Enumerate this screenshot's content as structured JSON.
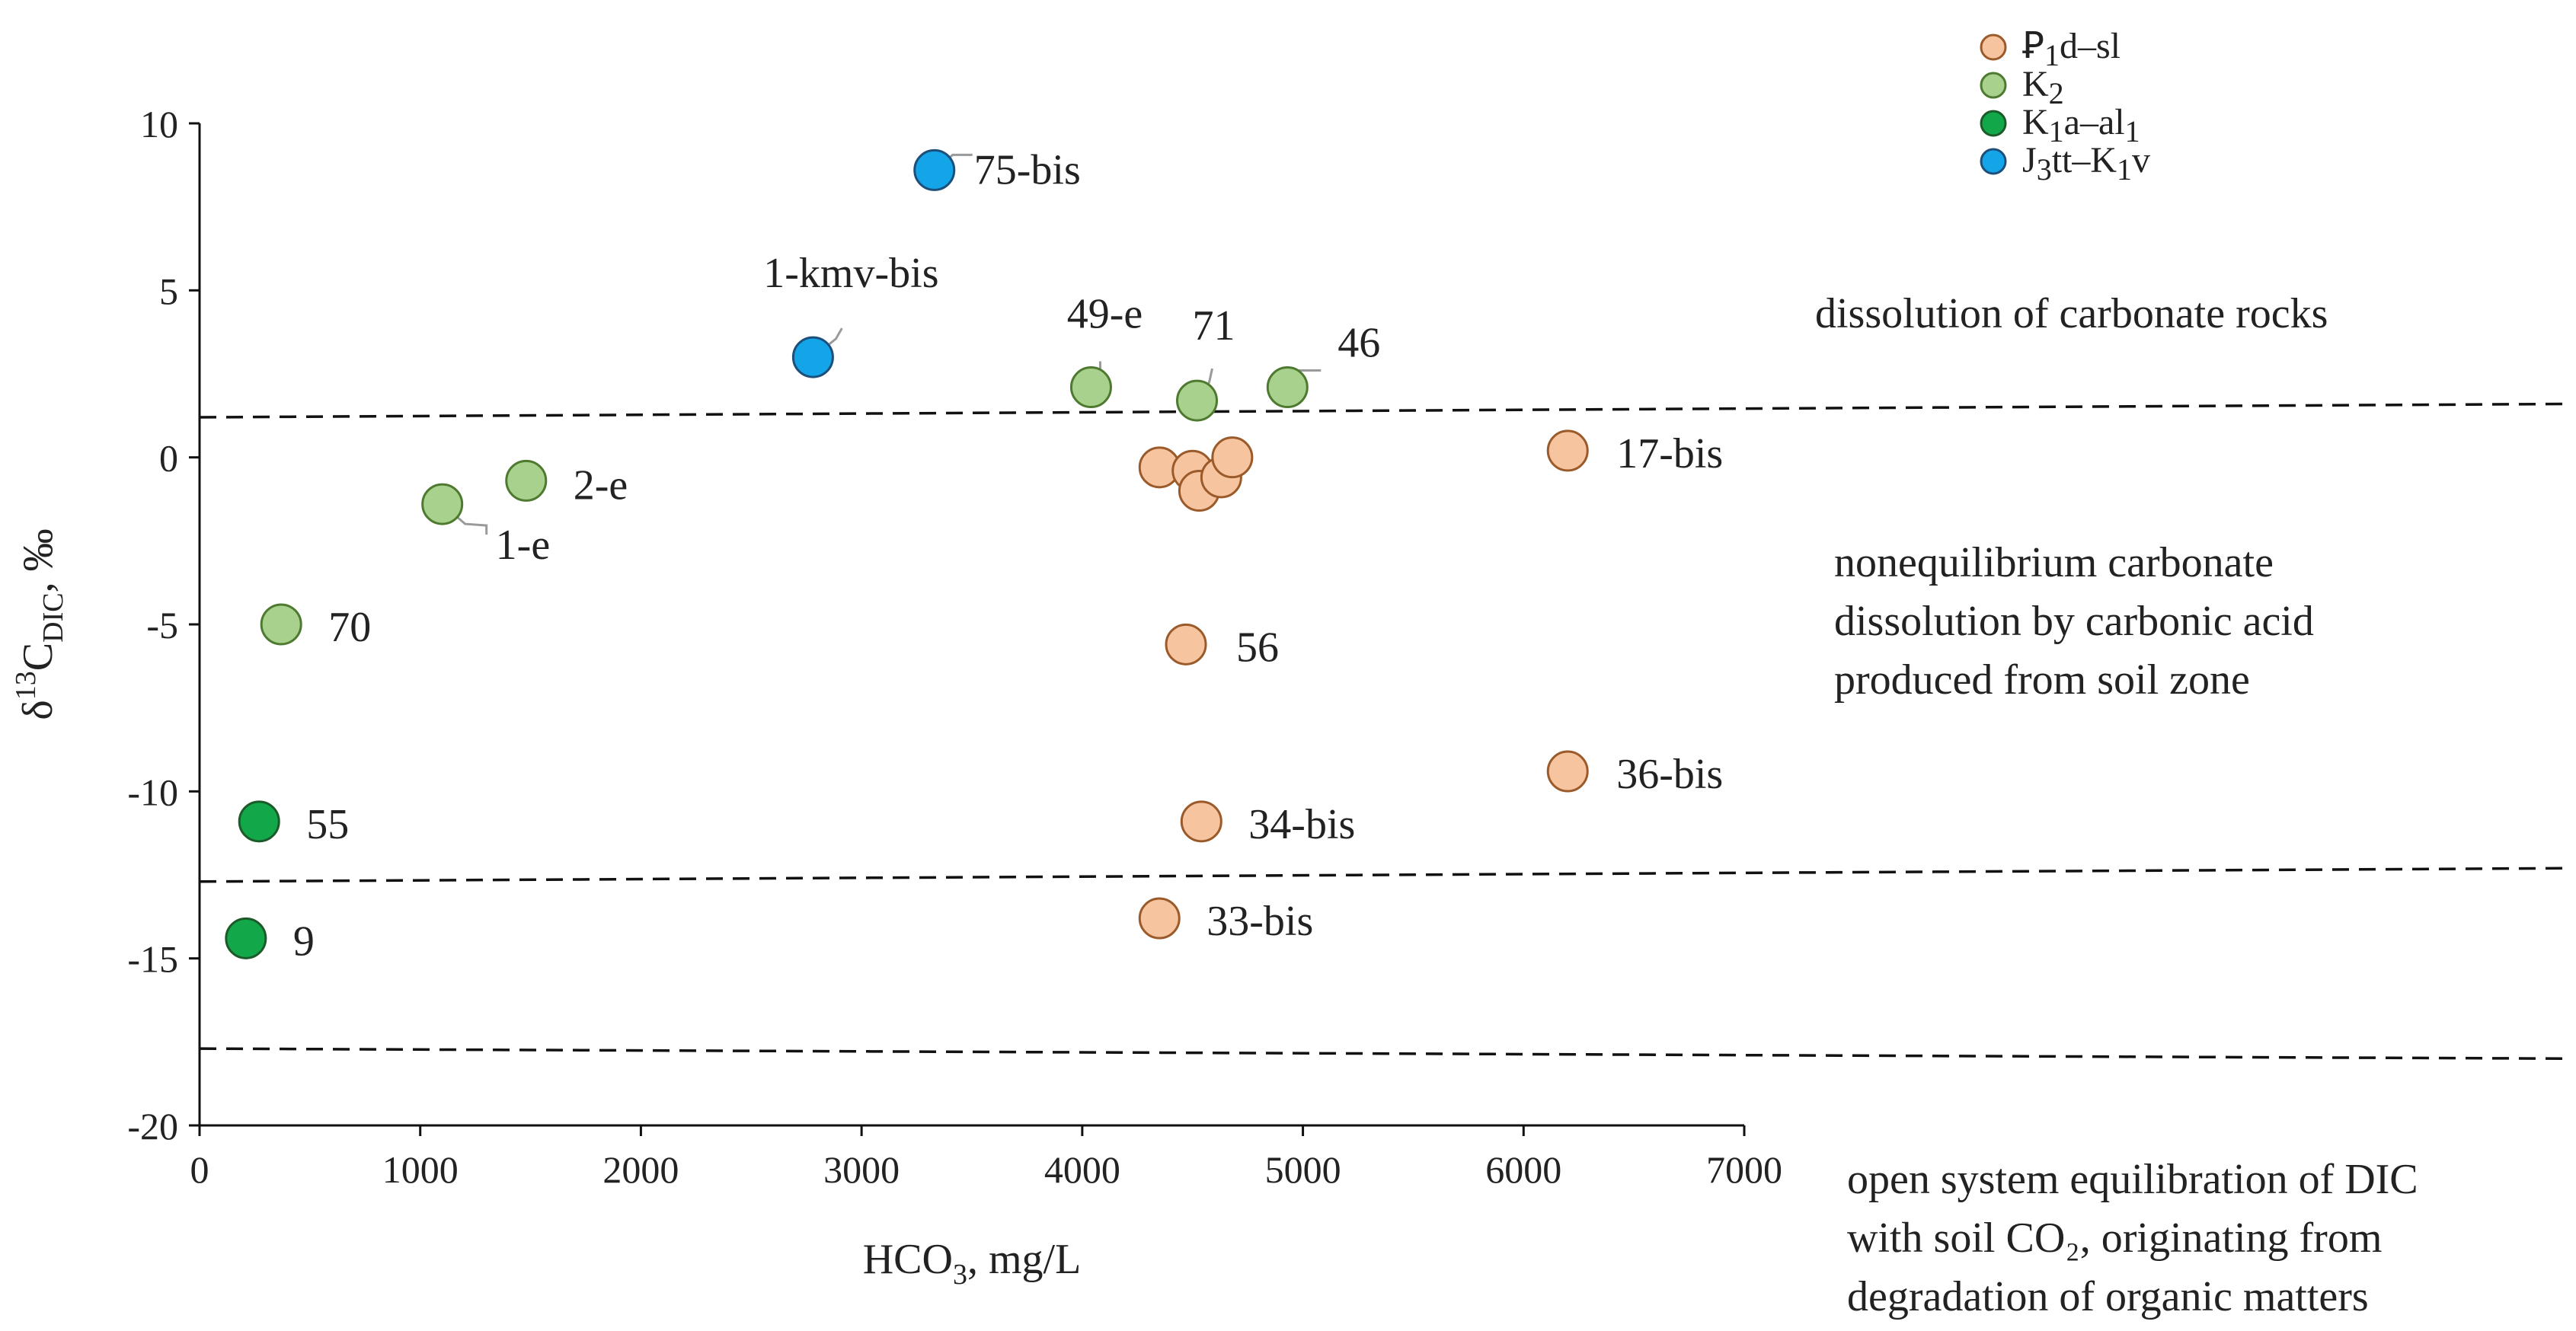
{
  "chart_data": {
    "type": "scatter",
    "x_axis": {
      "label": "HCO",
      "label_sub": "3",
      "label_suffix": ", mg/L",
      "range": [
        0,
        7000
      ],
      "ticks": [
        0,
        1000,
        2000,
        3000,
        4000,
        5000,
        6000,
        7000
      ],
      "tick_labels": [
        "0",
        "1000",
        "2000",
        "3000",
        "4000",
        "5000",
        "6000",
        "7000"
      ]
    },
    "y_axis": {
      "label_prefix": "δ",
      "label_sup": "13",
      "label_main": "C",
      "label_sub": "DIC",
      "label_suffix": ", ‰",
      "range": [
        -20,
        10
      ],
      "ticks": [
        10,
        5,
        0,
        -5,
        -10,
        -15,
        -20
      ],
      "tick_labels": [
        "10",
        "5",
        "0",
        "-5",
        "-10",
        "-15",
        "-20"
      ]
    },
    "legend": {
      "position": "top-right",
      "entries": [
        {
          "label": "Ꝑ1d–sl",
          "color": "#f7c4a0",
          "stroke": "#9a5a2a"
        },
        {
          "label": "K2",
          "color": "#a9d18e",
          "stroke": "#4e7a30"
        },
        {
          "label": "K1a–al1",
          "color": "#12a84a",
          "stroke": "#1d5a2a"
        },
        {
          "label": "J3tt–K1v",
          "color": "#13a5e8",
          "stroke": "#1d4f7a"
        }
      ]
    },
    "series": [
      {
        "name": "Ꝑ1d–sl",
        "color": "#f7c4a0",
        "stroke": "#9a5a2a",
        "points": [
          {
            "x": 6200,
            "y": 0.2,
            "label": "17-bis"
          },
          {
            "x": 4350,
            "y": -0.3,
            "label": ""
          },
          {
            "x": 4500,
            "y": -0.4,
            "label": ""
          },
          {
            "x": 4530,
            "y": -1.0,
            "label": ""
          },
          {
            "x": 4630,
            "y": -0.6,
            "label": ""
          },
          {
            "x": 4680,
            "y": 0.0,
            "label": ""
          },
          {
            "x": 4470,
            "y": -5.6,
            "label": "56"
          },
          {
            "x": 6200,
            "y": -9.4,
            "label": "36-bis"
          },
          {
            "x": 4540,
            "y": -10.9,
            "label": "34-bis"
          },
          {
            "x": 4350,
            "y": -13.8,
            "label": "33-bis"
          }
        ]
      },
      {
        "name": "K2",
        "color": "#a9d18e",
        "stroke": "#4e7a30",
        "points": [
          {
            "x": 4040,
            "y": 2.1,
            "label": "49-e"
          },
          {
            "x": 4520,
            "y": 1.7,
            "label": "71"
          },
          {
            "x": 4930,
            "y": 2.1,
            "label": "46"
          },
          {
            "x": 1480,
            "y": -0.7,
            "label": "2-e"
          },
          {
            "x": 1100,
            "y": -1.4,
            "label": "1-e"
          },
          {
            "x": 370,
            "y": -5.0,
            "label": "70"
          }
        ]
      },
      {
        "name": "K1a–al1",
        "color": "#12a84a",
        "stroke": "#1d5a2a",
        "points": [
          {
            "x": 270,
            "y": -10.9,
            "label": "55"
          },
          {
            "x": 210,
            "y": -14.4,
            "label": "9"
          }
        ]
      },
      {
        "name": "J3tt–K1v",
        "color": "#13a5e8",
        "stroke": "#1d4f7a",
        "points": [
          {
            "x": 3330,
            "y": 8.6,
            "label": "75-bis"
          },
          {
            "x": 2780,
            "y": 3.0,
            "label": "1-kmv-bis"
          }
        ]
      }
    ],
    "boundary_lines": [
      {
        "y_start": 1.2,
        "y_end": 1.6,
        "style": "dashed"
      },
      {
        "y_start": -12.7,
        "y_end": -12.3,
        "style": "dashed"
      },
      {
        "y_start": -17.7,
        "y_end": -18.0,
        "style": "dashed"
      }
    ],
    "zone_annotations": [
      {
        "lines": [
          "dissolution of carbonate rocks"
        ]
      },
      {
        "lines": [
          "nonequilibrium carbonate",
          "dissolution by carbonic acid",
          "produced from soil zone"
        ]
      },
      {
        "lines": [
          "open system equilibration of DIC",
          "with soil CO₂, originating from",
          "degradation of organic matters"
        ]
      }
    ],
    "grid": false
  }
}
